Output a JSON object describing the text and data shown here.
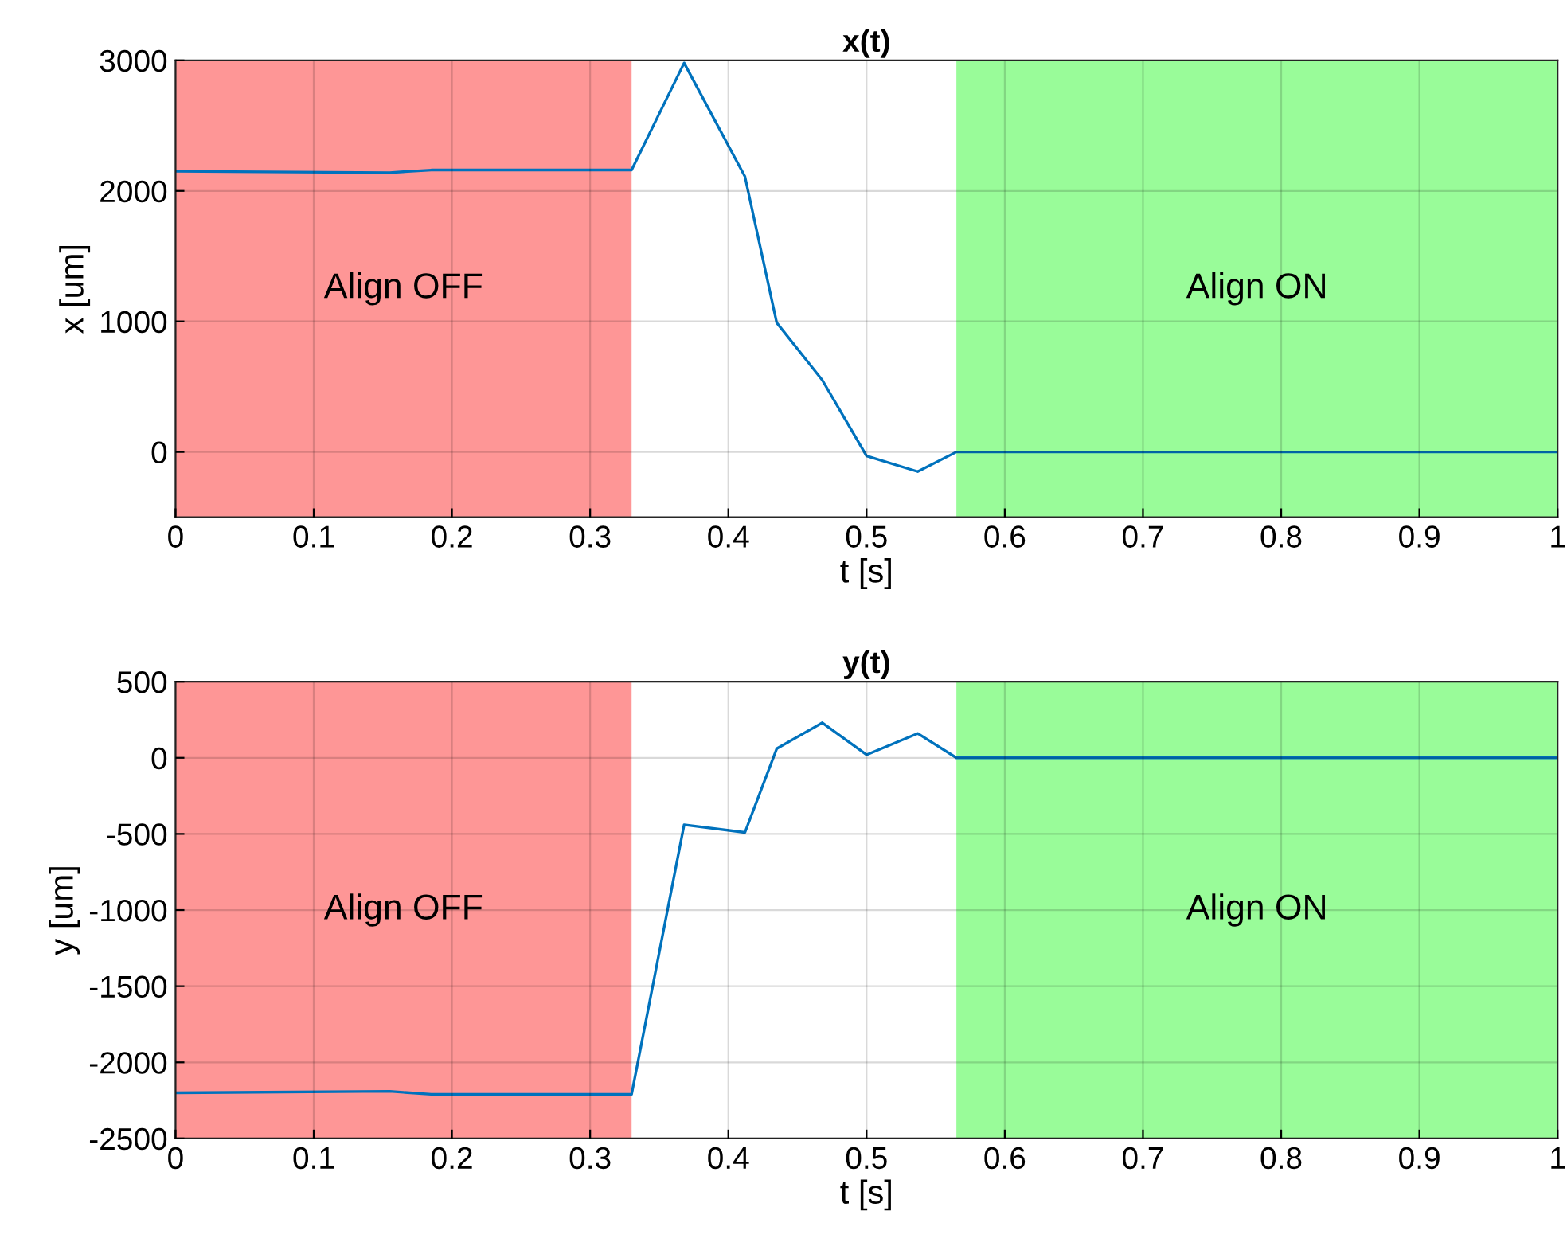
{
  "chart_data": [
    {
      "type": "line",
      "title": "x(t)",
      "xlabel": "t [s]",
      "ylabel": "x [um]",
      "x": [
        0,
        0.155,
        0.185,
        0.33,
        0.368,
        0.412,
        0.435,
        0.468,
        0.5,
        0.537,
        0.565,
        1
      ],
      "series": [
        {
          "color": "#0072bd",
          "values": [
            2150,
            2140,
            2160,
            2160,
            2980,
            2110,
            990,
            550,
            -30,
            -150,
            0,
            0
          ]
        }
      ],
      "xlim": [
        0,
        1
      ],
      "xticks": [
        0,
        0.1,
        0.2,
        0.3,
        0.4,
        0.5,
        0.6,
        0.7,
        0.8,
        0.9,
        1
      ],
      "ylim": [
        -500,
        3000
      ],
      "yticks": [
        0,
        1000,
        2000,
        3000
      ],
      "grid": true,
      "marker": "none",
      "line_style": "solid",
      "bands": [
        {
          "axis": "x",
          "from": 0,
          "to": 0.33,
          "label": "Align OFF",
          "color": "#fe9696"
        },
        {
          "axis": "x",
          "from": 0.565,
          "to": 1,
          "label": "Align ON",
          "color": "#99fc99"
        }
      ]
    },
    {
      "type": "line",
      "title": "y(t)",
      "xlabel": "t [s]",
      "ylabel": "y [um]",
      "x": [
        0,
        0.155,
        0.185,
        0.33,
        0.368,
        0.412,
        0.435,
        0.468,
        0.5,
        0.537,
        0.565,
        1
      ],
      "series": [
        {
          "color": "#0072bd",
          "values": [
            -2200,
            -2190,
            -2210,
            -2210,
            -440,
            -490,
            60,
            230,
            20,
            160,
            0,
            0
          ]
        }
      ],
      "xlim": [
        0,
        1
      ],
      "xticks": [
        0,
        0.1,
        0.2,
        0.3,
        0.4,
        0.5,
        0.6,
        0.7,
        0.8,
        0.9,
        1
      ],
      "ylim": [
        -2500,
        500
      ],
      "yticks": [
        -2500,
        -2000,
        -1500,
        -1000,
        -500,
        0,
        500
      ],
      "grid": true,
      "marker": "none",
      "line_style": "solid",
      "bands": [
        {
          "axis": "x",
          "from": 0,
          "to": 0.33,
          "label": "Align OFF",
          "color": "#fe9696"
        },
        {
          "axis": "x",
          "from": 0.565,
          "to": 1,
          "label": "Align ON",
          "color": "#99fc99"
        }
      ]
    }
  ]
}
